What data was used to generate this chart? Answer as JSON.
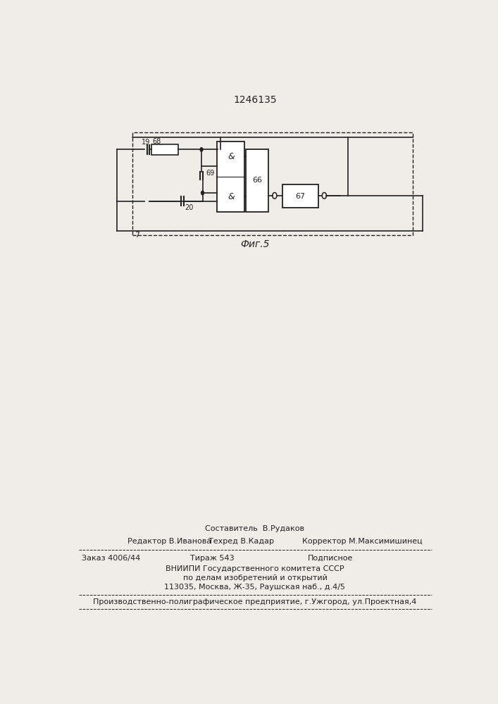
{
  "title": "1246135",
  "fig_label": "Фиг.5",
  "bg_color": "#f0ede8",
  "line_color": "#222222",
  "page_width": 7.07,
  "page_height": 10.0,
  "footer": {
    "sostavitel": "Составитель  В.Рудаков",
    "editor": "Редактор В.Иванова",
    "tekhred": "Техред В.Кадар",
    "korrektor": "Корректор М.Максимишинец",
    "zakaz": "Заказ 4006/44",
    "tirazh": "Тираж 543",
    "podpisnoe": "Подписное",
    "vniiipi": "ВНИИПИ Государственного комитета СССР",
    "po_delam": "по делам изобретений и открытий",
    "address": "113035, Москва, Ж-35, Раушская наб., д.4/5",
    "proizv": "Производственно-полиграфическое предприятие, г.Ужгород, ул.Проектная,4"
  }
}
